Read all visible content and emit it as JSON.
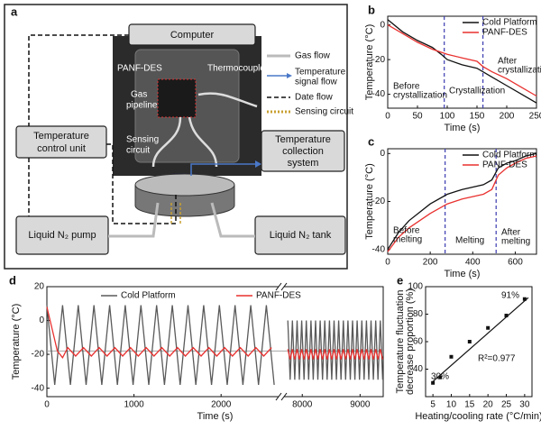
{
  "diagram": {
    "label": "a",
    "computer": "Computer",
    "control_unit": [
      "Temperature",
      "control unit"
    ],
    "collection_system": [
      "Temperature",
      "collection",
      "system"
    ],
    "pump": "Liquid N₂ pump",
    "tank": "Liquid N₂ tank",
    "legend": [
      "Gas flow",
      "Temperature",
      "signal flow",
      "Date flow",
      "Sensing circuit"
    ],
    "photo_labels": [
      "PANF-DES",
      "Thermocouple",
      "Gas",
      "pipeline",
      "Sensing",
      "circuit"
    ]
  },
  "chart_data": [
    {
      "type": "line",
      "label": "b",
      "xlabel": "Time (s)",
      "ylabel": [
        "Temperature (°C)"
      ],
      "xlim": [
        0,
        250
      ],
      "xticks": [
        0,
        50,
        100,
        150,
        200,
        250
      ],
      "ylim": [
        -48,
        5
      ],
      "yticks": [
        -40,
        -20,
        0
      ],
      "legend": "upper right",
      "vlines": [
        95,
        160
      ],
      "vline_color": "#3b3bb0",
      "annotations": [
        [
          "Before",
          "crystallization"
        ],
        [
          "Crystallization"
        ],
        [
          "After",
          "crystallization"
        ]
      ],
      "series": [
        {
          "name": "Cold Platform",
          "color": "#111111",
          "x": [
            0,
            25,
            50,
            75,
            90,
            100,
            125,
            150,
            175,
            200,
            225,
            250
          ],
          "values": [
            3,
            -4,
            -9,
            -13,
            -17,
            -20,
            -23,
            -25,
            -30,
            -35,
            -40,
            -45
          ]
        },
        {
          "name": "PANF-DES",
          "color": "#e8312f",
          "x": [
            0,
            25,
            50,
            75,
            100,
            125,
            150,
            160,
            175,
            200,
            225,
            250
          ],
          "values": [
            0,
            -5,
            -10,
            -14,
            -17,
            -19,
            -21,
            -24,
            -27,
            -31,
            -36,
            -41
          ]
        }
      ]
    },
    {
      "type": "line",
      "label": "c",
      "xlabel": "Time (s)",
      "ylabel": [
        "Temperature (°C)"
      ],
      "xlim": [
        0,
        700
      ],
      "xticks": [
        0,
        200,
        400,
        600
      ],
      "ylim": [
        -42,
        2
      ],
      "yticks": [
        -40,
        -20,
        0
      ],
      "legend": "upper right",
      "vlines": [
        270,
        510
      ],
      "vline_color": "#3b3bb0",
      "annotations": [
        [
          "Before",
          "melting"
        ],
        [
          "Melting"
        ],
        [
          "After",
          "melting"
        ]
      ],
      "series": [
        {
          "name": "Cold Platform",
          "color": "#111111",
          "x": [
            0,
            50,
            100,
            200,
            280,
            350,
            450,
            490,
            520,
            560,
            600,
            650,
            700
          ],
          "values": [
            -40,
            -33,
            -28,
            -21,
            -17,
            -15,
            -13,
            -11,
            -6,
            -4,
            -3,
            -1,
            0
          ]
        },
        {
          "name": "PANF-DES",
          "color": "#e8312f",
          "x": [
            0,
            50,
            100,
            200,
            280,
            350,
            450,
            490,
            520,
            560,
            600,
            650,
            700
          ],
          "values": [
            -41,
            -35,
            -31,
            -25,
            -21,
            -19,
            -17,
            -15,
            -9,
            -6,
            -4,
            -2,
            -1
          ]
        }
      ]
    },
    {
      "type": "line",
      "label": "d",
      "xlabel": "Time  (s)",
      "ylabel": [
        "Temperature  (°C)"
      ],
      "xlim": [
        0,
        9400
      ],
      "xbreak": [
        2650,
        7700
      ],
      "xticks": [
        0,
        1000,
        2000,
        8000,
        9000
      ],
      "ylim": [
        -45,
        20
      ],
      "yticks": [
        -40,
        -20,
        0,
        20
      ],
      "legend": "upper center",
      "hline": -18,
      "hline_color": "#999999",
      "annotations": [],
      "series": [
        {
          "name": "Cold Platform",
          "color": "#5a5a5a",
          "x": [
            0,
            90,
            180,
            270,
            360,
            450,
            540,
            630,
            720,
            810,
            900,
            990,
            1080,
            1170,
            1260,
            1350,
            1440,
            1530,
            1620,
            1710,
            1800,
            1890,
            1980,
            2070,
            2160,
            2250,
            2340,
            2430,
            2520,
            2610,
            7750,
            7790,
            7830,
            7870,
            7910,
            7950,
            7990,
            8030,
            8070,
            8110,
            8150,
            8190,
            8230,
            8270,
            8310,
            8350,
            8390,
            8430,
            8470,
            8510,
            8550,
            8590,
            8630,
            8670,
            8710,
            8750,
            8790,
            8830,
            8870,
            8910,
            8950,
            8990,
            9030,
            9070,
            9110,
            9150,
            9190,
            9230,
            9270,
            9310,
            9350,
            9390
          ],
          "values": [
            9,
            -38,
            9,
            -38,
            9,
            -38,
            9,
            -38,
            9,
            -38,
            9,
            -38,
            9,
            -38,
            9,
            -38,
            9,
            -38,
            9,
            -38,
            9,
            -38,
            9,
            -38,
            9,
            -38,
            9,
            -38,
            9,
            -38,
            0,
            -35,
            0,
            -35,
            0,
            -35,
            0,
            -35,
            0,
            -35,
            0,
            -35,
            0,
            -35,
            0,
            -35,
            0,
            -35,
            0,
            -35,
            0,
            -35,
            0,
            -35,
            0,
            -35,
            0,
            -35,
            0,
            -35,
            0,
            -35,
            0,
            -35,
            0,
            -35,
            0,
            -35,
            0,
            -35,
            0,
            -35
          ]
        },
        {
          "name": "PANF-DES",
          "color": "#e8312f",
          "x": [
            0,
            60,
            120,
            180,
            240,
            330,
            420,
            510,
            600,
            690,
            780,
            870,
            960,
            1050,
            1140,
            1230,
            1320,
            1410,
            1500,
            1590,
            1680,
            1770,
            1860,
            1950,
            2040,
            2130,
            2220,
            2310,
            2400,
            2490,
            2580,
            7750,
            7790,
            7830,
            7870,
            7910,
            7950,
            7990,
            8030,
            8070,
            8110,
            8150,
            8190,
            8230,
            8270,
            8310,
            8350,
            8390,
            8430,
            8470,
            8510,
            8550,
            8590,
            8630,
            8670,
            8710,
            8750,
            8790,
            8830,
            8870,
            8910,
            8950,
            8990,
            9030,
            9070,
            9110,
            9150,
            9190,
            9230,
            9270,
            9310,
            9350,
            9390
          ],
          "values": [
            8,
            -5,
            -18,
            -22,
            -16,
            -21,
            -16,
            -21,
            -16,
            -21,
            -16,
            -21,
            -16,
            -21,
            -16,
            -21,
            -16,
            -21,
            -16,
            -21,
            -16,
            -21,
            -16,
            -21,
            -16,
            -21,
            -16,
            -21,
            -16,
            -21,
            -16,
            -17,
            -23,
            -17,
            -23,
            -17,
            -23,
            -17,
            -23,
            -17,
            -23,
            -17,
            -23,
            -17,
            -23,
            -17,
            -23,
            -17,
            -23,
            -17,
            -23,
            -17,
            -23,
            -17,
            -23,
            -17,
            -23,
            -17,
            -23,
            -17,
            -23,
            -17,
            -23,
            -17,
            -23,
            -17,
            -23,
            -17,
            -23,
            -17,
            -23,
            -17,
            -23
          ]
        }
      ]
    },
    {
      "type": "scatter",
      "label": "e",
      "xlabel": "Heating/cooling rate (°C/min)",
      "ylabel": [
        "Temperature fluctuation",
        "decrease proportion (%)"
      ],
      "xlim": [
        3,
        32
      ],
      "xticks": [
        5,
        10,
        15,
        20,
        25,
        30
      ],
      "ylim": [
        20,
        100
      ],
      "yticks": [
        40,
        60,
        80,
        100
      ],
      "color": "#111111",
      "x": [
        5,
        7,
        10,
        15,
        20,
        25,
        30
      ],
      "values": [
        30,
        34,
        49,
        60,
        70,
        79,
        91
      ],
      "fit": {
        "x": [
          5,
          31
        ],
        "y": [
          31,
          92
        ]
      },
      "annotations": [
        [
          "30%"
        ],
        [
          "91%"
        ],
        [
          "R²=0.977"
        ]
      ]
    }
  ]
}
